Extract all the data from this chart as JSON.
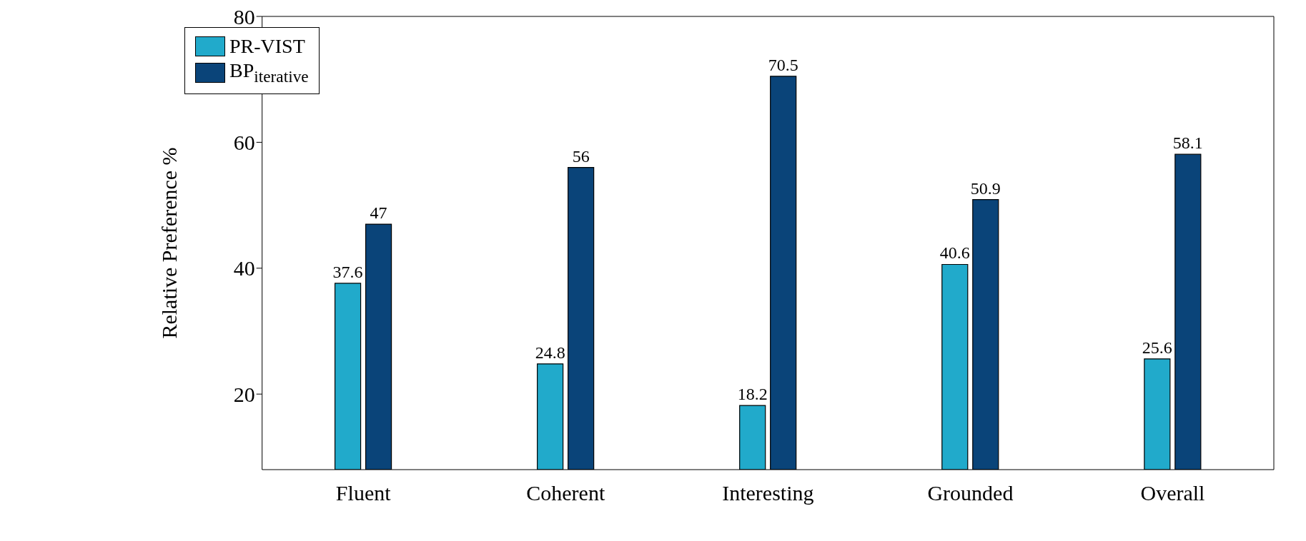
{
  "chart_data": {
    "type": "bar",
    "ylabel": "Relative Preference %",
    "categories": [
      "Fluent",
      "Coherent",
      "Interesting",
      "Grounded",
      "Overall"
    ],
    "series": [
      {
        "name": "PR-VIST",
        "color": "#21aacb",
        "values": [
          37.6,
          24.8,
          18.2,
          40.6,
          25.6
        ]
      },
      {
        "name": "BP$_{iterative}$",
        "color": "#0a4479",
        "values": [
          47,
          56,
          70.5,
          50.9,
          58.1
        ]
      }
    ],
    "ylim": [
      8,
      80
    ],
    "yticks": [
      20,
      40,
      60,
      80
    ],
    "data_labels": true,
    "grid": false,
    "legend": "top left"
  }
}
